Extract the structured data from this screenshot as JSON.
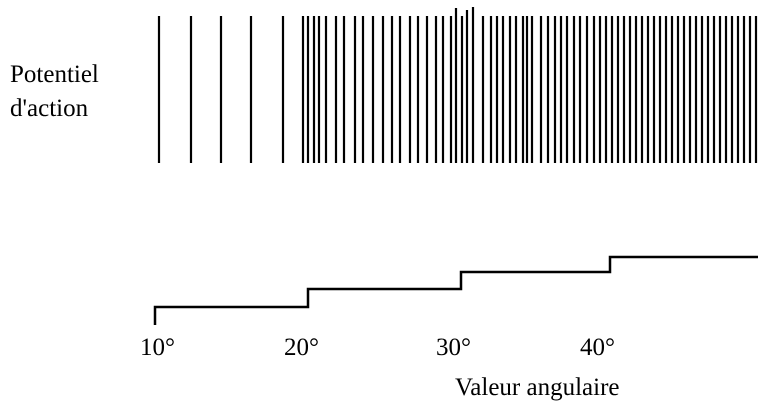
{
  "labels": {
    "spike_label_line1": "Potentiel",
    "spike_label_line2": "d'action",
    "axis_label": "Valeur angulaire"
  },
  "angle_ticks": [
    "10°",
    "20°",
    "30°",
    "40°"
  ],
  "colors": {
    "ink": "#000000",
    "background": "#ffffff"
  }
}
